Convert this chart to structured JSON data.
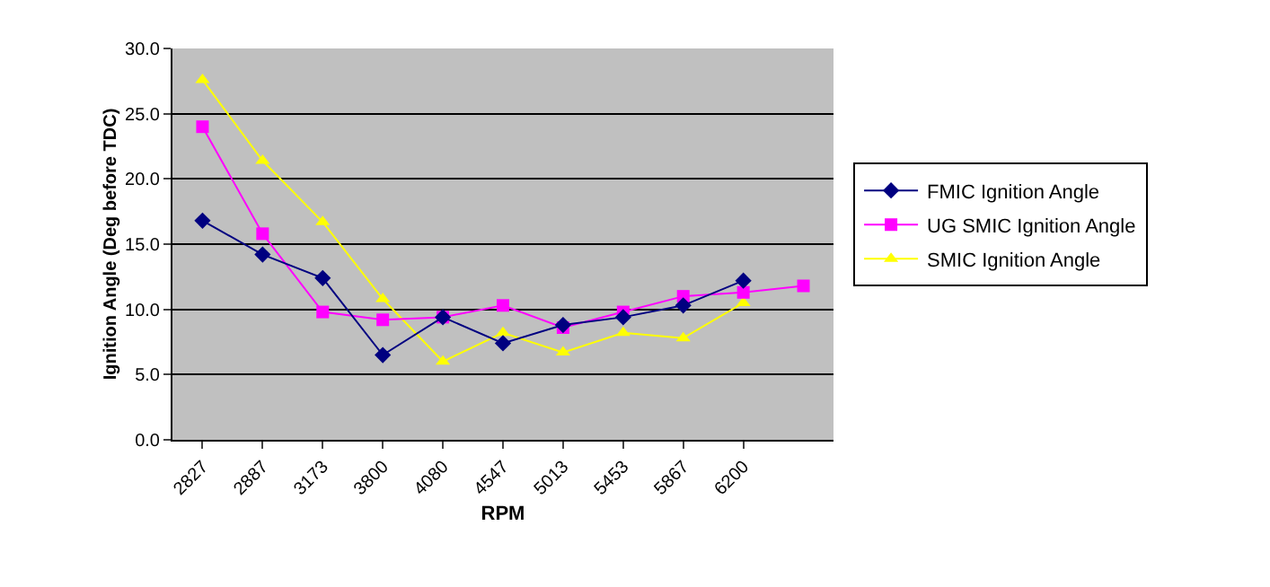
{
  "chart_data": {
    "type": "line",
    "xlabel": "RPM",
    "ylabel": "Ignition Angle (Deg before TDC)",
    "categories": [
      "2827",
      "2887",
      "3173",
      "3800",
      "4080",
      "4547",
      "5013",
      "5453",
      "5867",
      "6200",
      null
    ],
    "series": [
      {
        "name": "FMIC Ignition Angle",
        "color": "#000080",
        "marker": "diamond",
        "values": [
          16.8,
          14.2,
          12.4,
          6.5,
          9.4,
          7.4,
          8.8,
          9.4,
          10.3,
          12.2,
          null
        ]
      },
      {
        "name": "UG SMIC Ignition Angle",
        "color": "#ff00ff",
        "marker": "square",
        "values": [
          24.0,
          15.8,
          9.8,
          9.2,
          9.4,
          10.3,
          8.6,
          9.8,
          11.0,
          11.3,
          11.8
        ]
      },
      {
        "name": "SMIC Ignition Angle",
        "color": "#ffff00",
        "marker": "triangle",
        "values": [
          27.6,
          21.4,
          16.7,
          10.8,
          6.0,
          8.2,
          6.7,
          8.2,
          7.8,
          10.5,
          null
        ]
      }
    ],
    "ylim": [
      0,
      30
    ],
    "yticks": [
      {
        "value": 0,
        "label": "0.0"
      },
      {
        "value": 5,
        "label": "5.0"
      },
      {
        "value": 10,
        "label": "10.0"
      },
      {
        "value": 15,
        "label": "15.0"
      },
      {
        "value": 20,
        "label": "20.0"
      },
      {
        "value": 25,
        "label": "25.0"
      },
      {
        "value": 30,
        "label": "30.0"
      }
    ],
    "grid": "y",
    "legend": "right"
  }
}
